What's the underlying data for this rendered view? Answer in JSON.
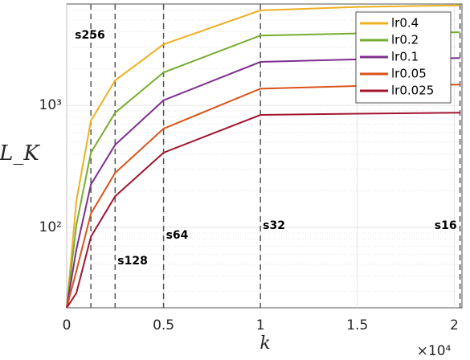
{
  "chart_data": {
    "type": "line",
    "x_label": "k",
    "y_label": "L_K",
    "x_exponent": "×10⁴",
    "x": [
      0,
      500,
      1250,
      2500,
      5000,
      10000,
      15000,
      20300
    ],
    "series": [
      {
        "name": "lr0.4",
        "color": "#edb120",
        "values": [
          22,
          165,
          750,
          1600,
          3160,
          6000,
          6400,
          6600
        ]
      },
      {
        "name": "lr0.2",
        "color": "#77ac30",
        "values": [
          22,
          105,
          410,
          870,
          1860,
          3730,
          3880,
          3970
        ]
      },
      {
        "name": "lr0.1",
        "color": "#7e2f8e",
        "values": [
          22,
          66,
          225,
          475,
          1100,
          2270,
          2380,
          2440
        ]
      },
      {
        "name": "lr0.05",
        "color": "#d95319",
        "values": [
          22,
          44,
          130,
          280,
          645,
          1370,
          1440,
          1480
        ]
      },
      {
        "name": "lr0.025",
        "color": "#a2142f",
        "values": [
          22,
          29,
          84,
          180,
          410,
          835,
          855,
          870
        ]
      }
    ],
    "annotations": [
      {
        "x": 1250,
        "label": "s256"
      },
      {
        "x": 2500,
        "label": "s128"
      },
      {
        "x": 5000,
        "label": "s64"
      },
      {
        "x": 10000,
        "label": "s32"
      },
      {
        "x": 20300,
        "label": "s16"
      }
    ],
    "xlim": [
      0,
      20400
    ],
    "ylim": [
      22,
      6760
    ],
    "y_scale": "log",
    "xticks": [
      0,
      {
        "value": 5000,
        "label": "0.5"
      },
      {
        "value": 10000,
        "label": "1"
      },
      {
        "value": 15000,
        "label": "1.5"
      },
      {
        "value": 20000,
        "label": "2"
      }
    ],
    "yticks": [
      {
        "value": 100,
        "label": "10²"
      },
      {
        "value": 1000,
        "label": "10³"
      }
    ],
    "grid": true,
    "legend": "upper right"
  }
}
